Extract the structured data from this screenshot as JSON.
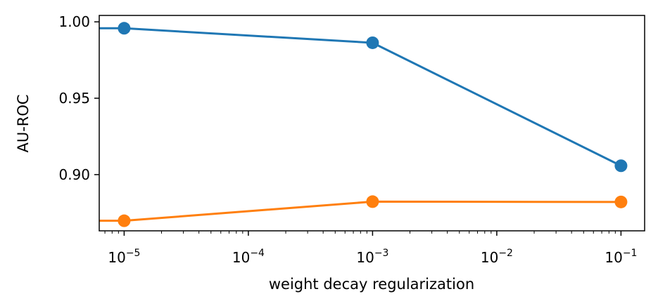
{
  "chart_data": {
    "type": "line",
    "title": "",
    "xlabel": "weight decay regularization",
    "ylabel": "AU-ROC",
    "xscale": "log",
    "xlim": [
      6.3e-06,
      0.155
    ],
    "ylim": [
      0.8632,
      1.0042
    ],
    "x_ticks": [
      {
        "value": 1e-05,
        "base": "10",
        "exp": "−5"
      },
      {
        "value": 0.0001,
        "base": "10",
        "exp": "−4"
      },
      {
        "value": 0.001,
        "base": "10",
        "exp": "−3"
      },
      {
        "value": 0.01,
        "base": "10",
        "exp": "−2"
      },
      {
        "value": 0.1,
        "base": "10",
        "exp": "−1"
      }
    ],
    "y_ticks": [
      {
        "value": 0.9,
        "label": "0.90"
      },
      {
        "value": 0.95,
        "label": "0.95"
      },
      {
        "value": 1.0,
        "label": "1.00"
      }
    ],
    "grid": false,
    "series": [
      {
        "color": "#1f77b4",
        "x": [
          1e-06,
          1e-05,
          0.001,
          0.1
        ],
        "y": [
          0.996,
          0.9958,
          0.9863,
          0.9058
        ],
        "marker_from": 1
      },
      {
        "color": "#ff7f0e",
        "x": [
          1e-06,
          1e-05,
          0.001,
          0.1
        ],
        "y": [
          0.8697,
          0.8698,
          0.8823,
          0.8821
        ],
        "marker_from": 1
      }
    ]
  }
}
